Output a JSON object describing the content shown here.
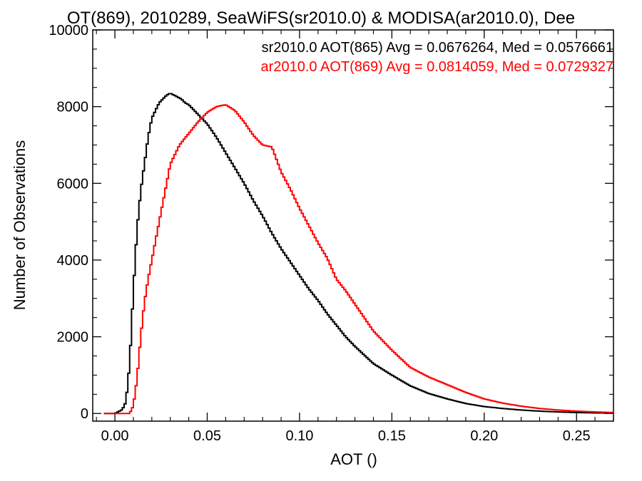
{
  "chart_data": {
    "type": "line",
    "title": "OT(869), 2010289, SeaWiFS(sr2010.0) & MODISA(ar2010.0), Dee",
    "xlabel": "AOT ()",
    "ylabel": "Number of Observations",
    "xlim": [
      -0.012,
      0.27
    ],
    "ylim": [
      -200,
      10000
    ],
    "xticks": [
      "0.00",
      "0.05",
      "0.10",
      "0.15",
      "0.20",
      "0.25"
    ],
    "yticks": [
      "0",
      "2000",
      "4000",
      "6000",
      "8000",
      "10000"
    ],
    "grid": false,
    "legend_position": "top-right",
    "series": [
      {
        "name": "sr2010.0 AOT(865) Avg = 0.0676264, Med = 0.0576661",
        "color": "#000000",
        "x": [
          -0.006,
          0.0,
          0.004,
          0.006,
          0.008,
          0.01,
          0.012,
          0.014,
          0.016,
          0.018,
          0.02,
          0.022,
          0.024,
          0.026,
          0.028,
          0.03,
          0.032,
          0.034,
          0.036,
          0.038,
          0.04,
          0.045,
          0.05,
          0.055,
          0.06,
          0.065,
          0.07,
          0.075,
          0.08,
          0.085,
          0.09,
          0.095,
          0.1,
          0.105,
          0.11,
          0.115,
          0.12,
          0.125,
          0.13,
          0.14,
          0.15,
          0.16,
          0.17,
          0.18,
          0.19,
          0.2,
          0.21,
          0.22,
          0.23,
          0.24,
          0.25,
          0.26,
          0.27
        ],
        "y": [
          0,
          0,
          100,
          300,
          1300,
          3200,
          4800,
          5800,
          6500,
          7200,
          7700,
          7900,
          8100,
          8200,
          8300,
          8350,
          8300,
          8250,
          8200,
          8100,
          8050,
          7800,
          7550,
          7200,
          6800,
          6400,
          6000,
          5550,
          5150,
          4700,
          4300,
          3950,
          3600,
          3250,
          2950,
          2600,
          2300,
          2000,
          1750,
          1300,
          1000,
          720,
          520,
          380,
          260,
          180,
          130,
          90,
          60,
          40,
          25,
          15,
          10
        ]
      },
      {
        "name": "ar2010.0 AOT(869) Avg = 0.0814059, Med = 0.0729327",
        "color": "#ff0000",
        "x": [
          -0.006,
          0.0,
          0.008,
          0.01,
          0.012,
          0.014,
          0.016,
          0.018,
          0.02,
          0.022,
          0.024,
          0.026,
          0.028,
          0.03,
          0.035,
          0.04,
          0.045,
          0.05,
          0.055,
          0.06,
          0.065,
          0.07,
          0.075,
          0.08,
          0.085,
          0.09,
          0.095,
          0.1,
          0.105,
          0.11,
          0.115,
          0.12,
          0.125,
          0.13,
          0.135,
          0.14,
          0.15,
          0.16,
          0.17,
          0.18,
          0.19,
          0.2,
          0.21,
          0.22,
          0.23,
          0.24,
          0.25,
          0.26,
          0.27
        ],
        "y": [
          0,
          0,
          0,
          200,
          900,
          2000,
          2900,
          3500,
          4000,
          4500,
          5000,
          5500,
          6000,
          6500,
          7000,
          7300,
          7600,
          7850,
          8000,
          8050,
          7900,
          7600,
          7250,
          7000,
          6950,
          6300,
          5850,
          5350,
          4900,
          4450,
          4050,
          3500,
          3200,
          2850,
          2500,
          2150,
          1650,
          1200,
          950,
          750,
          550,
          380,
          270,
          190,
          130,
          90,
          60,
          40,
          25
        ]
      }
    ]
  }
}
